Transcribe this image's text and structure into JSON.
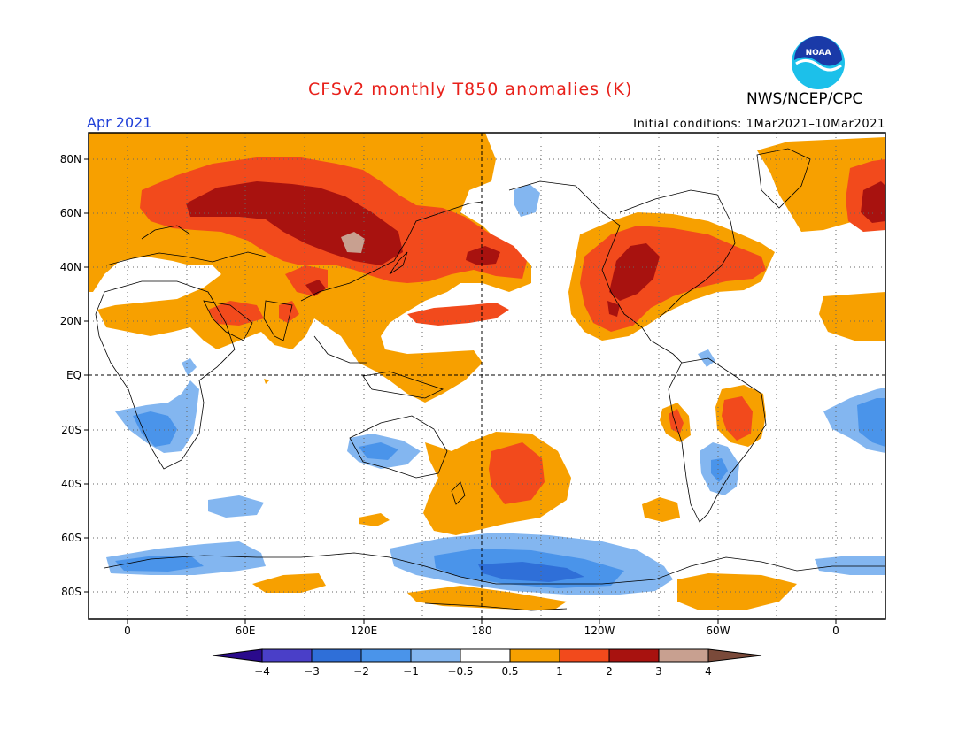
{
  "header": {
    "title": "CFSv2 monthly T850 anomalies (K)",
    "period": "Apr 2021",
    "initial_conditions": "Initial conditions: 1Mar2021–10Mar2021",
    "agency": "NWS/NCEP/CPC",
    "logo_text": "NOAA"
  },
  "axes": {
    "lat_labels": [
      "80N",
      "60N",
      "40N",
      "20N",
      "EQ",
      "20S",
      "40S",
      "60S",
      "80S"
    ],
    "lon_labels": [
      "0",
      "60E",
      "120E",
      "180",
      "120W",
      "60W",
      "0"
    ]
  },
  "colorbar": {
    "labels": [
      "−4",
      "−3",
      "−2",
      "−1",
      "−0.5",
      "0.5",
      "1",
      "2",
      "3",
      "4"
    ],
    "colors": [
      "#2a0a8c",
      "#4a3fc8",
      "#2f6fd8",
      "#4a94ea",
      "#83b6f0",
      "#ffffff",
      "#f7a000",
      "#f24a1c",
      "#a8120f",
      "#c8a090",
      "#7a4a3a"
    ]
  },
  "map_colors": {
    "weak_warm": "#f7a000",
    "mid_warm": "#f24a1c",
    "strong_warm": "#a8120f",
    "extreme_warm": "#c8a090",
    "weak_cold": "#83b6f0",
    "mid_cold": "#4a94ea",
    "strong_cold": "#2f6fd8"
  }
}
